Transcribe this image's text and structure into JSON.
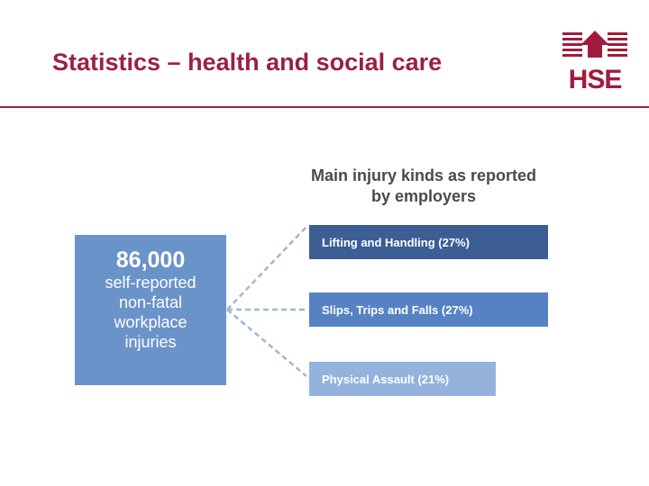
{
  "slide": {
    "title": "Statistics – health and social care",
    "logo_text": "HSE"
  },
  "diagram": {
    "heading_line1": "Main injury kinds as reported",
    "heading_line2": "by employers",
    "main_box": {
      "number": "86,000",
      "lines": [
        "self-reported",
        "non-fatal",
        "workplace",
        "injuries"
      ]
    },
    "categories": [
      {
        "label": "Lifting and Handling (27%)"
      },
      {
        "label": "Slips, Trips and Falls (27%)"
      },
      {
        "label": "Physical Assault (21%)"
      }
    ]
  },
  "colors": {
    "title": "#9b2140",
    "main_box": "#6a93c9",
    "category_1": "#3c5e95",
    "category_2": "#5682c4",
    "category_3": "#95b2dd"
  }
}
